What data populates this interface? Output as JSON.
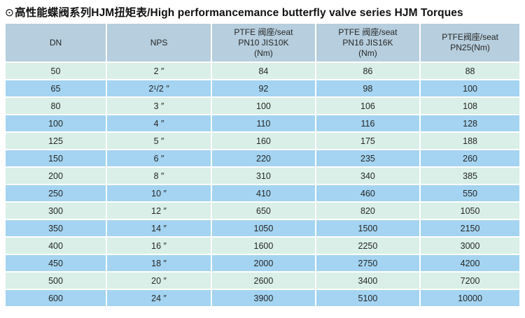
{
  "title": {
    "bullet": "⊙",
    "text": "高性能蝶阀系列HJM扭矩表/High performancemance butterfly valve series HJM Torques"
  },
  "table": {
    "columns": [
      {
        "id": "dn",
        "label_lines": [
          "DN"
        ]
      },
      {
        "id": "nps",
        "label_lines": [
          "NPS"
        ]
      },
      {
        "id": "pn10",
        "label_lines": [
          "PTFE 阀座/seat",
          "PN10 JIS10K",
          "(Nm)"
        ]
      },
      {
        "id": "pn16",
        "label_lines": [
          "PTFE 阀座/seat",
          "PN16 JIS16K",
          "(Nm)"
        ]
      },
      {
        "id": "pn25",
        "label_lines": [
          "PTFE阀座/seat",
          "PN25(Nm)"
        ]
      }
    ],
    "rows": [
      {
        "cells": [
          "50",
          "2 ″",
          "84",
          "86",
          "88"
        ]
      },
      {
        "cells": [
          "65",
          "2¹/2 ″",
          "92",
          "98",
          "100"
        ]
      },
      {
        "cells": [
          "80",
          "3 ″",
          "100",
          "106",
          "108"
        ]
      },
      {
        "cells": [
          "100",
          "4 ″",
          "110",
          "116",
          "128"
        ]
      },
      {
        "cells": [
          "125",
          "5 ″",
          "160",
          "175",
          "188"
        ]
      },
      {
        "cells": [
          "150",
          "6 ″",
          "220",
          "235",
          "260"
        ]
      },
      {
        "cells": [
          "200",
          "8 ″",
          "310",
          "340",
          "385"
        ]
      },
      {
        "cells": [
          "250",
          "10 ″",
          "410",
          "460",
          "550"
        ]
      },
      {
        "cells": [
          "300",
          "12 ″",
          "650",
          "820",
          "1050"
        ]
      },
      {
        "cells": [
          "350",
          "14 ″",
          "1050",
          "1500",
          "2150"
        ]
      },
      {
        "cells": [
          "400",
          "16 ″",
          "1600",
          "2250",
          "3000"
        ]
      },
      {
        "cells": [
          "450",
          "18 ″",
          "2000",
          "2750",
          "4200"
        ]
      },
      {
        "cells": [
          "500",
          "20 ″",
          "2600",
          "3400",
          "7200"
        ]
      },
      {
        "cells": [
          "600",
          "24 ″",
          "3900",
          "5100",
          "10000"
        ]
      }
    ]
  },
  "colors": {
    "header_bg": "#b6cedd",
    "row_mint": "#d9efe7",
    "row_blue": "#a4d4f1",
    "text_color": "#262626",
    "title_color": "#111111",
    "page_bg": "#ffffff"
  }
}
